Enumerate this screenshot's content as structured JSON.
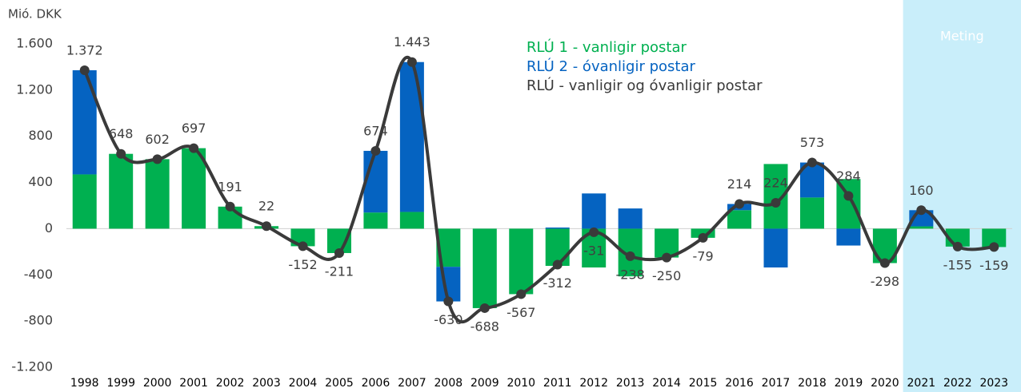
{
  "chart_data": {
    "type": "stacked-bar-line",
    "unit_label": "Mió. DKK",
    "categories": [
      "1998",
      "1999",
      "2000",
      "2001",
      "2002",
      "2003",
      "2004",
      "2005",
      "2006",
      "2007",
      "2008",
      "2009",
      "2010",
      "2011",
      "2012",
      "2013",
      "2014",
      "2015",
      "2016",
      "2017",
      "2018",
      "2019",
      "2020",
      "2021",
      "2022",
      "2023"
    ],
    "series": [
      {
        "name": "RLÚ 1 - vanligir postar",
        "color": "#00b050",
        "kind": "bar",
        "values": [
          470,
          648,
          602,
          697,
          191,
          22,
          -152,
          -211,
          140,
          145,
          -330,
          -688,
          -567,
          -322,
          -336,
          -413,
          -250,
          -79,
          160,
          560,
          270,
          430,
          -298,
          20,
          -155,
          -159
        ]
      },
      {
        "name": "RLÚ 2 - óvanligir postar",
        "color": "#0563c1",
        "kind": "bar",
        "values": [
          902,
          0,
          0,
          0,
          0,
          0,
          0,
          0,
          534,
          1298,
          -300,
          0,
          0,
          10,
          305,
          175,
          0,
          0,
          54,
          -336,
          303,
          -146,
          0,
          140,
          0,
          0
        ]
      },
      {
        "name": "RLÚ - vanligir og óvanligir postar",
        "color": "#3a3a3a",
        "kind": "line",
        "values": [
          1372,
          648,
          602,
          697,
          191,
          22,
          -152,
          -211,
          674,
          1443,
          -630,
          -688,
          -567,
          -312,
          -31,
          -238,
          -250,
          -79,
          214,
          224,
          573,
          284,
          -298,
          160,
          -155,
          -159
        ],
        "value_labels": [
          "1.372",
          "648",
          "602",
          "697",
          "191",
          "22",
          "-152",
          "-211",
          "674",
          "1.443",
          "-630",
          "-688",
          "-567",
          "-312",
          "-31",
          "-238",
          "-250",
          "-79",
          "214",
          "224",
          "573",
          "284",
          "-298",
          "160",
          "-155",
          "-159"
        ]
      }
    ],
    "ylim": [
      -1200,
      1600
    ],
    "yticks": [
      {
        "value": -1200,
        "label": "-1.200"
      },
      -800,
      -400,
      0,
      400,
      800,
      {
        "value": 1200,
        "label": "1.200"
      },
      {
        "value": 1600,
        "label": "1.600"
      }
    ],
    "shaded_region": {
      "label": "Meting",
      "from": "2021",
      "color": "#c9eefa"
    }
  }
}
